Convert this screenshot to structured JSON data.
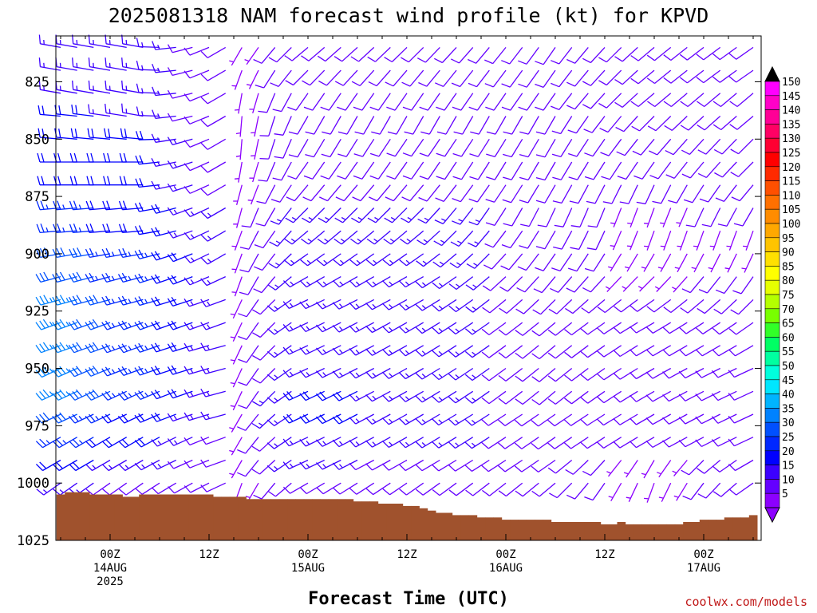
{
  "chart_data": {
    "type": "wind-barb time-height section",
    "title": "2025081318 NAM forecast wind profile (kt) for KPVD",
    "xlabel": "Forecast Time (UTC)",
    "ylabel": "",
    "y_axis": {
      "scale": "linear",
      "inverted": true,
      "range": [
        1025,
        805
      ],
      "ticks": [
        "825",
        "850",
        "875",
        "900",
        "925",
        "950",
        "975",
        "1000",
        "1025"
      ]
    },
    "x_axis": {
      "range_hours_from_init": [
        0,
        84
      ],
      "ticks": [
        {
          "line1": "00Z",
          "line2": "14AUG",
          "line3": "2025"
        },
        {
          "line1": "12Z",
          "line2": "",
          "line3": ""
        },
        {
          "line1": "00Z",
          "line2": "15AUG",
          "line3": ""
        },
        {
          "line1": "12Z",
          "line2": "",
          "line3": ""
        },
        {
          "line1": "00Z",
          "line2": "16AUG",
          "line3": ""
        },
        {
          "line1": "12Z",
          "line2": "",
          "line3": ""
        },
        {
          "line1": "00Z",
          "line2": "17AUG",
          "line3": ""
        }
      ]
    },
    "colorbar": {
      "units": "kt",
      "labels": [
        "150",
        "145",
        "140",
        "135",
        "130",
        "125",
        "120",
        "115",
        "110",
        "105",
        "100",
        "95",
        "90",
        "85",
        "80",
        "75",
        "70",
        "65",
        "60",
        "55",
        "50",
        "45",
        "40",
        "35",
        "30",
        "25",
        "20",
        "15",
        "10",
        "5"
      ],
      "colors": [
        "#ff00ff",
        "#ff00c8",
        "#ff0096",
        "#ff0064",
        "#ff0032",
        "#ff0000",
        "#ff2a00",
        "#ff5000",
        "#ff7000",
        "#ff8c00",
        "#ffa800",
        "#ffc400",
        "#ffe000",
        "#ffff00",
        "#e6ff00",
        "#b4ff00",
        "#78ff00",
        "#32ff28",
        "#00ff64",
        "#00ffa0",
        "#00ffdc",
        "#00e6ff",
        "#00b4ff",
        "#0082ff",
        "#0050ff",
        "#0028ff",
        "#0000ff",
        "#3c00ff",
        "#6400ff",
        "#8c00ff"
      ]
    },
    "surface_pressure": {
      "hours": [
        0,
        1,
        2,
        3,
        4,
        5,
        6,
        7,
        8,
        9,
        10,
        11,
        12,
        13,
        14,
        15,
        16,
        17,
        18,
        19,
        20,
        21,
        22,
        23,
        24,
        25,
        26,
        27,
        28,
        29,
        30,
        31,
        32,
        33,
        34,
        35,
        36,
        37,
        38,
        39,
        40,
        41,
        42,
        43,
        44,
        45,
        46,
        47,
        48,
        49,
        50,
        51,
        52,
        53,
        54,
        55,
        56,
        57,
        58,
        59,
        60,
        61,
        62,
        63,
        64,
        65,
        66,
        67,
        68,
        69,
        70,
        71,
        72,
        73,
        74,
        75,
        76,
        77,
        78,
        79,
        80,
        81,
        82,
        83,
        84
      ],
      "hPa": [
        1005,
        1004,
        1004,
        1004,
        1005,
        1005,
        1005,
        1005,
        1006,
        1006,
        1005,
        1005,
        1005,
        1005,
        1005,
        1005,
        1005,
        1005,
        1005,
        1006,
        1006,
        1006,
        1006,
        1007,
        1007,
        1007,
        1007,
        1007,
        1007,
        1007,
        1007,
        1007,
        1007,
        1007,
        1007,
        1007,
        1008,
        1008,
        1008,
        1009,
        1009,
        1009,
        1010,
        1010,
        1011,
        1012,
        1013,
        1013,
        1014,
        1014,
        1014,
        1015,
        1015,
        1015,
        1016,
        1016,
        1016,
        1016,
        1016,
        1016,
        1017,
        1017,
        1017,
        1017,
        1017,
        1017,
        1018,
        1018,
        1017,
        1018,
        1018,
        1018,
        1018,
        1018,
        1018,
        1018,
        1017,
        1017,
        1016,
        1016,
        1016,
        1015,
        1015,
        1015,
        1014
      ]
    },
    "wind_barbs_pressure_levels_hPa": [
      810,
      820,
      830,
      840,
      850,
      860,
      870,
      880,
      890,
      900,
      910,
      920,
      930,
      940,
      950,
      960,
      970,
      980,
      990,
      1000
    ],
    "wind_barbs_every_hours": 2,
    "wind_barb_key_hours": [
      0,
      10,
      20,
      22,
      30,
      44,
      60,
      72,
      84
    ],
    "wind_barb_key_direction_deg": [
      [
        280,
        280,
        240,
        210,
        230,
        225,
        215,
        230,
        235
      ],
      [
        280,
        280,
        240,
        200,
        225,
        220,
        215,
        230,
        235
      ],
      [
        280,
        280,
        240,
        190,
        215,
        215,
        215,
        230,
        230
      ],
      [
        275,
        280,
        240,
        185,
        210,
        210,
        210,
        225,
        230
      ],
      [
        275,
        275,
        240,
        185,
        210,
        215,
        210,
        220,
        225
      ],
      [
        270,
        270,
        240,
        190,
        215,
        215,
        210,
        215,
        225
      ],
      [
        270,
        270,
        240,
        195,
        220,
        220,
        210,
        205,
        220
      ],
      [
        265,
        265,
        240,
        195,
        225,
        225,
        205,
        200,
        210
      ],
      [
        265,
        265,
        240,
        200,
        230,
        230,
        210,
        200,
        200
      ],
      [
        260,
        260,
        240,
        200,
        235,
        235,
        215,
        210,
        205
      ],
      [
        255,
        255,
        245,
        200,
        240,
        240,
        220,
        225,
        215
      ],
      [
        255,
        255,
        250,
        205,
        245,
        240,
        225,
        235,
        225
      ],
      [
        250,
        250,
        250,
        205,
        245,
        240,
        230,
        240,
        235
      ],
      [
        250,
        250,
        255,
        205,
        245,
        240,
        230,
        240,
        240
      ],
      [
        245,
        250,
        255,
        205,
        245,
        240,
        230,
        240,
        245
      ],
      [
        245,
        245,
        255,
        205,
        245,
        240,
        230,
        240,
        245
      ],
      [
        245,
        245,
        255,
        210,
        245,
        240,
        235,
        240,
        245
      ],
      [
        240,
        240,
        250,
        210,
        245,
        240,
        235,
        240,
        245
      ],
      [
        240,
        240,
        250,
        210,
        245,
        240,
        235,
        210,
        240
      ],
      [
        235,
        235,
        245,
        200,
        240,
        235,
        230,
        200,
        235
      ]
    ],
    "wind_barb_key_speed_kt": [
      [
        15,
        15,
        10,
        5,
        10,
        10,
        10,
        10,
        10
      ],
      [
        15,
        15,
        10,
        5,
        10,
        10,
        10,
        10,
        10
      ],
      [
        15,
        15,
        10,
        5,
        10,
        10,
        10,
        10,
        10
      ],
      [
        20,
        15,
        10,
        5,
        10,
        10,
        10,
        10,
        10
      ],
      [
        20,
        20,
        10,
        5,
        10,
        10,
        10,
        10,
        10
      ],
      [
        20,
        20,
        10,
        5,
        10,
        10,
        10,
        10,
        10
      ],
      [
        20,
        20,
        10,
        5,
        10,
        10,
        10,
        10,
        10
      ],
      [
        25,
        20,
        15,
        5,
        15,
        15,
        10,
        5,
        10
      ],
      [
        25,
        20,
        15,
        5,
        15,
        15,
        10,
        5,
        5
      ],
      [
        30,
        25,
        15,
        5,
        15,
        15,
        10,
        5,
        5
      ],
      [
        30,
        25,
        15,
        5,
        15,
        15,
        10,
        5,
        10
      ],
      [
        35,
        25,
        15,
        5,
        15,
        15,
        10,
        10,
        10
      ],
      [
        35,
        25,
        15,
        5,
        15,
        15,
        10,
        10,
        10
      ],
      [
        35,
        25,
        15,
        5,
        15,
        15,
        10,
        10,
        10
      ],
      [
        35,
        25,
        15,
        5,
        15,
        15,
        10,
        10,
        10
      ],
      [
        35,
        25,
        15,
        5,
        20,
        15,
        10,
        10,
        10
      ],
      [
        30,
        20,
        15,
        5,
        20,
        15,
        10,
        10,
        10
      ],
      [
        25,
        20,
        10,
        5,
        15,
        15,
        10,
        10,
        10
      ],
      [
        20,
        15,
        10,
        5,
        15,
        10,
        10,
        5,
        10
      ],
      [
        15,
        10,
        10,
        5,
        10,
        10,
        10,
        5,
        10
      ]
    ],
    "ground_color": "#a0522d",
    "credit": "coolwx.com/models"
  }
}
